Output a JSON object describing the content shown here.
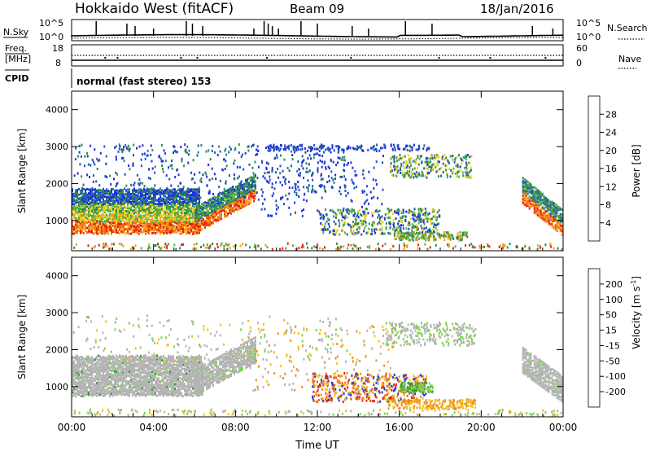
{
  "header": {
    "station": "Hokkaido West (fitACF)",
    "beam": "Beam 09",
    "date": "18/Jan/2016"
  },
  "status_panel": {
    "nsky_label": "N.Sky",
    "nsearch_label": "N.Search",
    "freq_label_line1": "Freq.",
    "freq_label_line2": "[MHz]",
    "nave_label": "Nave",
    "cpid_label": "CPID",
    "noise_tick_top": "10^5",
    "noise_tick_bottom": "10^0",
    "freq_tick_top": "18",
    "freq_tick_bottom": "8",
    "nave_tick_top": "60",
    "nave_tick_bottom": "0",
    "cpid_text": "normal (fast stereo) 153"
  },
  "chart_data": [
    {
      "type": "heatmap",
      "name": "power",
      "ylabel": "Slant Range [km]",
      "xlabel": "",
      "ylim": [
        180,
        4500
      ],
      "y_ticks": [
        "1000",
        "2000",
        "3000",
        "4000"
      ],
      "x_ticks": [
        "00:00",
        "04:00",
        "08:00",
        "12:00",
        "16:00",
        "20:00",
        "00:00"
      ],
      "colorbar_label": "Power [dB]",
      "colorbar_ticks": [
        "4",
        "8",
        "12",
        "16",
        "20",
        "24",
        "28"
      ],
      "colorbar_colors": [
        "#1f2ee0",
        "#2355b8",
        "#2e8a5a",
        "#57b03a",
        "#e8d01c",
        "#f5a01a",
        "#f06a10",
        "#e52410"
      ]
    },
    {
      "type": "heatmap",
      "name": "velocity",
      "ylabel": "Slant Range [km]",
      "xlabel": "Time UT",
      "ylim": [
        180,
        4500
      ],
      "y_ticks": [
        "1000",
        "2000",
        "3000",
        "4000"
      ],
      "x_ticks": [
        "00:00",
        "04:00",
        "08:00",
        "12:00",
        "16:00",
        "20:00",
        "00:00"
      ],
      "colorbar_label": "Velocity [m s",
      "colorbar_label_sup": "-1",
      "colorbar_label_end": "]",
      "colorbar_ticks": [
        "200",
        "100",
        "50",
        "15",
        "-15",
        "-50",
        "-100",
        "-200"
      ],
      "colorbar_colors": [
        "#1f3fd8",
        "#2a7a6a",
        "#3aa13a",
        "#7ed34a",
        "#b4b4b4",
        "#f0c020",
        "#f08c1c",
        "#ee5a12",
        "#e01e10"
      ]
    }
  ]
}
